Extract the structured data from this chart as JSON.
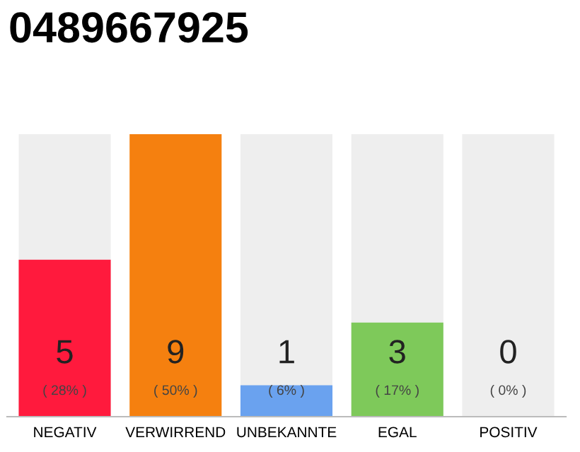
{
  "chart_data": {
    "type": "bar",
    "title": "0489667925",
    "categories": [
      "NEGATIV",
      "VERWIRREND",
      "UNBEKANNTE",
      "EGAL",
      "POSITIV"
    ],
    "values": [
      5,
      9,
      1,
      3,
      0
    ],
    "colors": [
      "#ff1a3d",
      "#f5800f",
      "#6aa2ef",
      "#7ec95a",
      "#cccccc"
    ],
    "value_labels": [
      "5\n( 28% )",
      "9\n( 50% )",
      "1\n( 6% )",
      "3\n( 17% )",
      "0\n( 0% )"
    ],
    "bands": [
      {
        "axis": "x",
        "from": "NEGATIV",
        "to": "NEGATIV",
        "color": "#eeeeee"
      },
      {
        "axis": "x",
        "from": "UNBEKANNTE",
        "to": "UNBEKANNTE",
        "color": "#eeeeee"
      },
      {
        "axis": "x",
        "from": "EGAL",
        "to": "EGAL",
        "color": "#eeeeee"
      },
      {
        "axis": "x",
        "from": "POSITIV",
        "to": "POSITIV",
        "color": "#eeeeee"
      }
    ],
    "ylim": [
      0,
      9
    ],
    "tick_labels": "x",
    "grid": false,
    "legend": false
  }
}
